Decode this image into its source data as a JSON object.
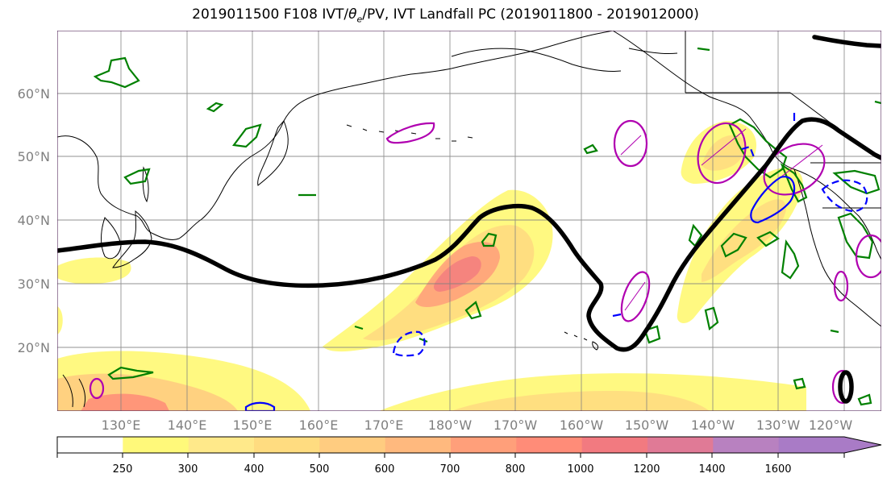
{
  "title": {
    "prefix": "2019011500 F108 IVT/",
    "theta": "θ",
    "theta_sub": "e",
    "suffix": "/PV, IVT Landfall PC (2019011800 - 2019012000)"
  },
  "lat_labels": [
    "60°N",
    "50°N",
    "40°N",
    "30°N",
    "20°N"
  ],
  "lon_labels": [
    "130°E",
    "140°E",
    "150°E",
    "160°E",
    "170°E",
    "180°W",
    "170°W",
    "160°W",
    "150°W",
    "140°W",
    "130°W",
    "120°W"
  ],
  "colorbar": {
    "labels": [
      "250",
      "300",
      "400",
      "500",
      "600",
      "700",
      "800",
      "1000",
      "1200",
      "1400",
      "1600"
    ],
    "colors": [
      "#ffffff",
      "#fff97a",
      "#ffe98a",
      "#ffdc80",
      "#ffcc80",
      "#ffb97e",
      "#ff9f7a",
      "#ff8c78",
      "#f27a80",
      "#e07a96",
      "#b881c0",
      "#a97bc6"
    ]
  },
  "contour_colors": {
    "ivt_pc": "#000000",
    "pv_positive": "#b000b0",
    "pv_negative": "#0000ff",
    "theta_e": "#008000"
  }
}
